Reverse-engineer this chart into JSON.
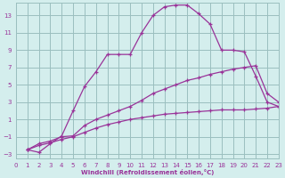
{
  "xlabel": "Windchill (Refroidissement éolien,°C)",
  "background_color": "#d4eeed",
  "grid_color": "#9bbfbf",
  "line_color": "#993399",
  "xlim": [
    0,
    23
  ],
  "ylim": [
    -3.5,
    14.5
  ],
  "xticks": [
    0,
    1,
    2,
    3,
    4,
    5,
    6,
    7,
    8,
    9,
    10,
    11,
    12,
    13,
    14,
    15,
    16,
    17,
    18,
    19,
    20,
    21,
    22,
    23
  ],
  "yticks": [
    -3,
    -1,
    1,
    3,
    5,
    7,
    9,
    11,
    13
  ],
  "series1": [
    [
      1,
      -2.5
    ],
    [
      2,
      -2.8
    ],
    [
      3,
      -1.8
    ],
    [
      4,
      -0.9
    ],
    [
      5,
      2.0
    ],
    [
      6,
      4.8
    ],
    [
      7,
      6.5
    ],
    [
      8,
      8.5
    ],
    [
      9,
      8.5
    ],
    [
      10,
      8.5
    ],
    [
      11,
      11.0
    ],
    [
      12,
      13.0
    ],
    [
      13,
      14.0
    ],
    [
      14,
      14.2
    ],
    [
      15,
      14.2
    ],
    [
      16,
      13.2
    ],
    [
      17,
      12.0
    ],
    [
      18,
      9.0
    ],
    [
      19,
      9.0
    ],
    [
      20,
      8.8
    ],
    [
      21,
      6.0
    ],
    [
      22,
      3.0
    ],
    [
      23,
      2.5
    ]
  ],
  "series2": [
    [
      1,
      -2.5
    ],
    [
      2,
      -1.8
    ],
    [
      3,
      -1.5
    ],
    [
      4,
      -1.0
    ],
    [
      5,
      -0.9
    ],
    [
      6,
      0.3
    ],
    [
      7,
      1.0
    ],
    [
      8,
      1.5
    ],
    [
      9,
      2.0
    ],
    [
      10,
      2.5
    ],
    [
      11,
      3.2
    ],
    [
      12,
      4.0
    ],
    [
      13,
      4.5
    ],
    [
      14,
      5.0
    ],
    [
      15,
      5.5
    ],
    [
      16,
      5.8
    ],
    [
      17,
      6.2
    ],
    [
      18,
      6.5
    ],
    [
      19,
      6.8
    ],
    [
      20,
      7.0
    ],
    [
      21,
      7.2
    ],
    [
      22,
      4.0
    ],
    [
      23,
      3.0
    ]
  ],
  "series3": [
    [
      1,
      -2.5
    ],
    [
      2,
      -2.0
    ],
    [
      3,
      -1.7
    ],
    [
      4,
      -1.3
    ],
    [
      5,
      -1.0
    ],
    [
      6,
      -0.5
    ],
    [
      7,
      0.0
    ],
    [
      8,
      0.4
    ],
    [
      9,
      0.7
    ],
    [
      10,
      1.0
    ],
    [
      11,
      1.2
    ],
    [
      12,
      1.4
    ],
    [
      13,
      1.6
    ],
    [
      14,
      1.7
    ],
    [
      15,
      1.8
    ],
    [
      16,
      1.9
    ],
    [
      17,
      2.0
    ],
    [
      18,
      2.1
    ],
    [
      19,
      2.1
    ],
    [
      20,
      2.1
    ],
    [
      21,
      2.2
    ],
    [
      22,
      2.3
    ],
    [
      23,
      2.5
    ]
  ]
}
